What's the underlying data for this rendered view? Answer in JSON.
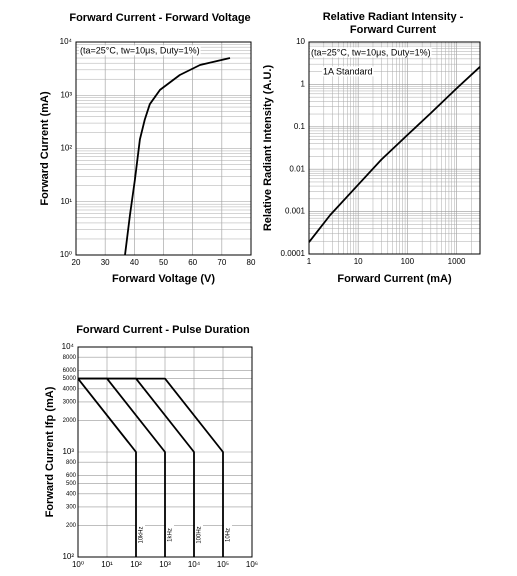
{
  "chart_data": [
    {
      "type": "line",
      "title": [
        "Forward Current - Forward Voltage"
      ],
      "x_label": "Forward Voltage (V)",
      "y_label": "Forward Current (mA)",
      "annotations": [
        "(ta=25°C, tw=10μs, Duty=1%)"
      ],
      "xlog": false,
      "ylog": true,
      "grid": true,
      "minor_grid": {
        "x": false,
        "y": true
      },
      "xlim": [
        20,
        80
      ],
      "xticks": [
        20,
        30,
        40,
        50,
        60,
        70,
        80
      ],
      "ylim": [
        1,
        10000
      ],
      "yticks": [
        {
          "value": 1,
          "label": "10⁰"
        },
        {
          "value": 10,
          "label": "10¹"
        },
        {
          "value": 100,
          "label": "10²"
        },
        {
          "value": 1000,
          "label": "10³"
        },
        {
          "value": 10000,
          "label": "10⁴"
        }
      ],
      "series": [
        {
          "color": "#000000",
          "x": [
            36.8,
            38.5,
            40.2,
            41.9,
            43.6,
            45.3,
            48.8,
            55.6,
            62.5,
            72.8
          ],
          "values": [
            1,
            5.7,
            26,
            148,
            350,
            680,
            1260,
            2400,
            3700,
            5000
          ]
        }
      ]
    },
    {
      "type": "line",
      "title": [
        "Relative Radiant Intensity -",
        "Forward Current"
      ],
      "x_label": "Forward Current (mA)",
      "y_label": "Relative Radiant Intensity (A.U.)",
      "annotations": [
        "(ta=25°C, tw=10μs, Duty=1%)",
        "1A Standard"
      ],
      "xlog": true,
      "ylog": true,
      "grid": true,
      "minor_grid": {
        "x": true,
        "y": true
      },
      "xlim": [
        1,
        3000
      ],
      "xticks": [
        1,
        10,
        100,
        1000
      ],
      "ylim": [
        0.0001,
        10
      ],
      "yticks": [
        0.0001,
        0.001,
        0.01,
        0.1,
        1,
        10
      ],
      "series": [
        {
          "color": "#000000",
          "x": [
            1,
            2.7,
            10,
            30,
            100,
            300,
            1000,
            3000
          ],
          "values": [
            0.00019,
            0.00083,
            0.0043,
            0.017,
            0.064,
            0.21,
            0.8,
            2.6
          ]
        }
      ]
    },
    {
      "type": "line",
      "title": [
        "Forward Current - Pulse Duration"
      ],
      "y_label": "Forward Current Ifp (mA)",
      "annotations": [],
      "xlog": true,
      "ylog": true,
      "grid": true,
      "minor_grid": {
        "x": false,
        "y": false
      },
      "xlim": [
        1,
        1000000
      ],
      "xticks": [
        {
          "value": 1,
          "label": "10⁰"
        },
        {
          "value": 10,
          "label": "10¹"
        },
        {
          "value": 100,
          "label": "10²"
        },
        {
          "value": 1000,
          "label": "10³"
        },
        {
          "value": 10000,
          "label": "10⁴"
        },
        {
          "value": 100000,
          "label": "10⁵"
        },
        {
          "value": 1000000,
          "label": "10⁶"
        }
      ],
      "ylim": [
        100,
        10000
      ],
      "yticks": [
        {
          "value": 100,
          "label": "10²"
        },
        200,
        300,
        400,
        500,
        600,
        800,
        {
          "value": 1000,
          "label": "10³"
        },
        2000,
        3000,
        4000,
        5000,
        6000,
        8000,
        {
          "value": 10000,
          "label": "10⁴"
        }
      ],
      "series": [
        {
          "name": "10kHz",
          "color": "#000000",
          "x": [
            1,
            100,
            100
          ],
          "values": [
            5000,
            1000,
            100
          ]
        },
        {
          "name": "1kHz",
          "color": "#000000",
          "x": [
            1,
            10,
            1000,
            1000
          ],
          "values": [
            5000,
            5000,
            1000,
            100
          ]
        },
        {
          "name": "100Hz",
          "color": "#000000",
          "x": [
            1,
            100,
            10000,
            10000
          ],
          "values": [
            5000,
            5000,
            1000,
            100
          ]
        },
        {
          "name": "10Hz",
          "color": "#000000",
          "x": [
            1,
            1000,
            100000,
            100000
          ],
          "values": [
            5000,
            5000,
            1000,
            100
          ]
        }
      ]
    }
  ]
}
